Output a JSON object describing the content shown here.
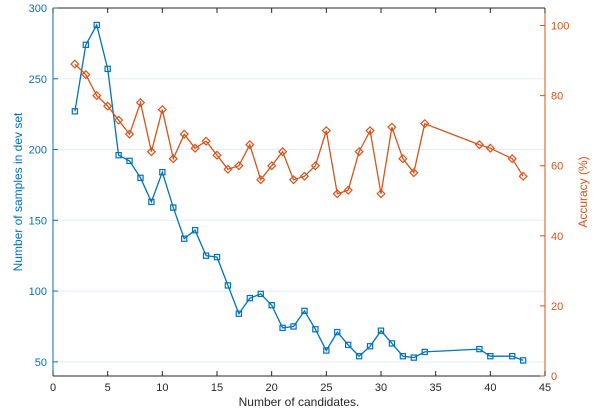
{
  "chart_data": {
    "type": "line",
    "title": "",
    "xlabel": "Number of candidates.",
    "ylabel_left": "Number of samples in dev set",
    "ylabel_right": "Accuracy (%)",
    "xlim": [
      0,
      45
    ],
    "ylim_left": [
      40,
      300
    ],
    "ylim_right": [
      0,
      105
    ],
    "xticks": [
      0,
      5,
      10,
      15,
      20,
      25,
      30,
      35,
      40,
      45
    ],
    "yticks_left": [
      50,
      100,
      150,
      200,
      250,
      300
    ],
    "yticks_right": [
      0,
      20,
      40,
      60,
      80,
      100
    ],
    "grid": "horizontal",
    "legend": "none",
    "series": [
      {
        "axis": "left",
        "color": "#0072BD",
        "marker": "square",
        "x": [
          2,
          3,
          4,
          5,
          6,
          7,
          8,
          9,
          10,
          11,
          12,
          13,
          14,
          15,
          16,
          17,
          18,
          19,
          20,
          21,
          22,
          23,
          24,
          25,
          26,
          27,
          28,
          29,
          30,
          31,
          32,
          33,
          34,
          39,
          40,
          42,
          43
        ],
        "y": [
          227,
          274,
          288,
          257,
          196,
          192,
          180,
          163,
          184,
          159,
          137,
          143,
          125,
          124,
          104,
          84,
          95,
          98,
          90,
          74,
          75,
          86,
          73,
          58,
          71,
          62,
          54,
          61,
          72,
          63,
          54,
          53,
          57,
          59,
          54,
          54,
          51
        ]
      },
      {
        "axis": "right",
        "color": "#D95319",
        "marker": "diamond",
        "x": [
          2,
          3,
          4,
          5,
          6,
          7,
          8,
          9,
          10,
          11,
          12,
          13,
          14,
          15,
          16,
          17,
          18,
          19,
          20,
          21,
          22,
          23,
          24,
          25,
          26,
          27,
          28,
          29,
          30,
          31,
          32,
          33,
          34,
          39,
          40,
          42,
          43
        ],
        "y": [
          89,
          86,
          80,
          77,
          73,
          69,
          78,
          64,
          76,
          62,
          69,
          65,
          67,
          63,
          59,
          60,
          66,
          56,
          60,
          64,
          56,
          57,
          60,
          70,
          52,
          53,
          64,
          70,
          52,
          71,
          62,
          58,
          72,
          66,
          65,
          62,
          57
        ]
      }
    ]
  }
}
